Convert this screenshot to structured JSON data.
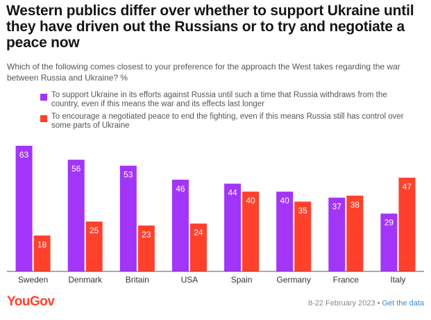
{
  "header": {
    "title": "Western publics differ over whether to support Ukraine until they have driven out the Russians or to try and negotiate a peace now",
    "subtitle": "Which of the following comes closest to your preference for the approach the West takes regarding the war between Russia and Ukraine? %"
  },
  "footer": {
    "logo_text": "YouGov",
    "date_text": "8-22 February 2023",
    "separator": "•",
    "link_text": "Get the data"
  },
  "colors": {
    "support": "#a235f7",
    "negotiate": "#ff412c"
  },
  "chart_data": {
    "type": "bar",
    "categories": [
      "Sweden",
      "Denmark",
      "Britain",
      "USA",
      "Spain",
      "Germany",
      "France",
      "Italy"
    ],
    "series": [
      {
        "name": "To support Ukraine in its efforts against Russia until such a time that Russia withdraws from the country, even if this means the war and its effects last longer",
        "color": "#a235f7",
        "values": [
          63,
          56,
          53,
          46,
          44,
          40,
          37,
          29
        ]
      },
      {
        "name": "To encourage a negotiated peace to end the fighting, even if this means Russia still has control over some parts of Ukraine",
        "color": "#ff412c",
        "values": [
          18,
          25,
          23,
          24,
          40,
          35,
          38,
          47
        ]
      }
    ],
    "ylim": [
      0,
      63
    ],
    "grid": false,
    "legend": "top-left",
    "data_labels": true
  }
}
